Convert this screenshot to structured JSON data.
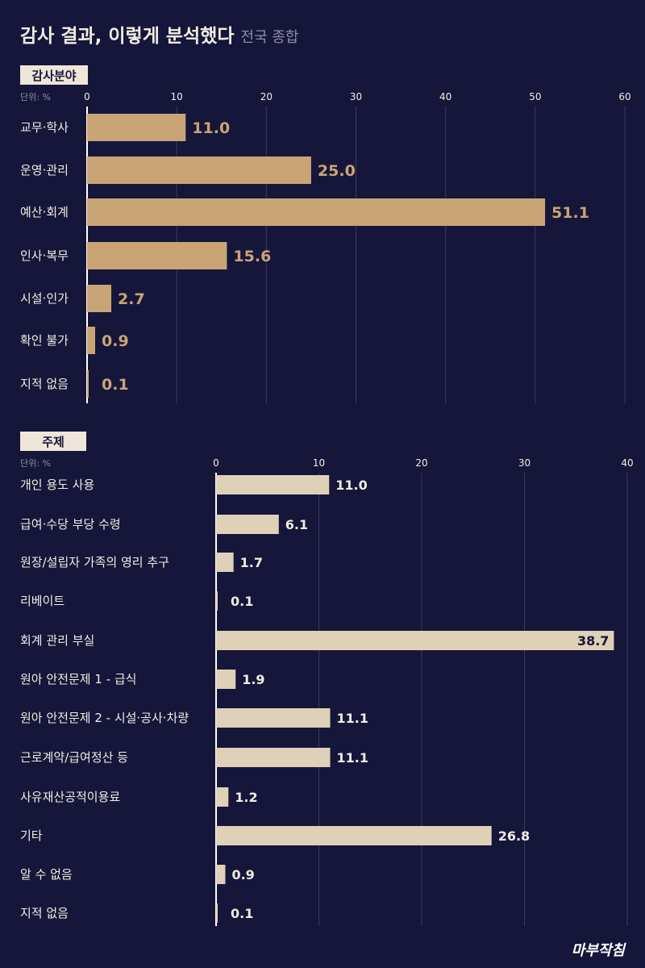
{
  "title": "감사 결과, 이렇게 분석했다",
  "subtitle": "전국 종합",
  "logo": "마부작침",
  "colors": {
    "background": "#16163a",
    "bar1": "#c9a475",
    "bar2": "#dfd0b8",
    "grid": "#3a3a5c",
    "text": "#f1ece4",
    "muted": "#8e8ea6"
  },
  "chart_data": [
    {
      "type": "bar",
      "orientation": "horizontal",
      "section_label": "감사분야",
      "unit_label": "단위: %",
      "xlim": [
        0,
        60
      ],
      "ticks": [
        0,
        10,
        20,
        30,
        40,
        50,
        60
      ],
      "grid": true,
      "categories": [
        "교무·학사",
        "운영·관리",
        "예산·회계",
        "인사·복무",
        "시설·인가",
        "확인 불가",
        "지적 없음"
      ],
      "values": [
        11.0,
        25.0,
        51.1,
        15.6,
        2.7,
        0.9,
        0.1
      ],
      "value_labels": [
        "11.0",
        "25.0",
        "51.1",
        "15.6",
        "2.7",
        "0.9",
        "0.1"
      ]
    },
    {
      "type": "bar",
      "orientation": "horizontal",
      "section_label": "주제",
      "unit_label": "단위: %",
      "xlim": [
        0,
        40
      ],
      "ticks": [
        0,
        10,
        20,
        30,
        40
      ],
      "grid": true,
      "categories": [
        "개인 용도 사용",
        "급여·수당 부당 수령",
        "원장/설립자 가족의 영리 추구",
        "리베이트",
        "회계 관리 부실",
        "원아 안전문제 1 - 급식",
        "원아 안전문제 2 - 시설·공사·차량",
        "근로계약/급여정산 등",
        "사유재산공적이용료",
        "기타",
        "알 수 없음",
        "지적 없음"
      ],
      "values": [
        11.0,
        6.1,
        1.7,
        0.1,
        38.7,
        1.9,
        11.1,
        11.1,
        1.2,
        26.8,
        0.9,
        0.1
      ],
      "value_labels": [
        "11.0",
        "6.1",
        "1.7",
        "0.1",
        "38.7",
        "1.9",
        "11.1",
        "11.1",
        "1.2",
        "26.8",
        "0.9",
        "0.1"
      ]
    }
  ]
}
